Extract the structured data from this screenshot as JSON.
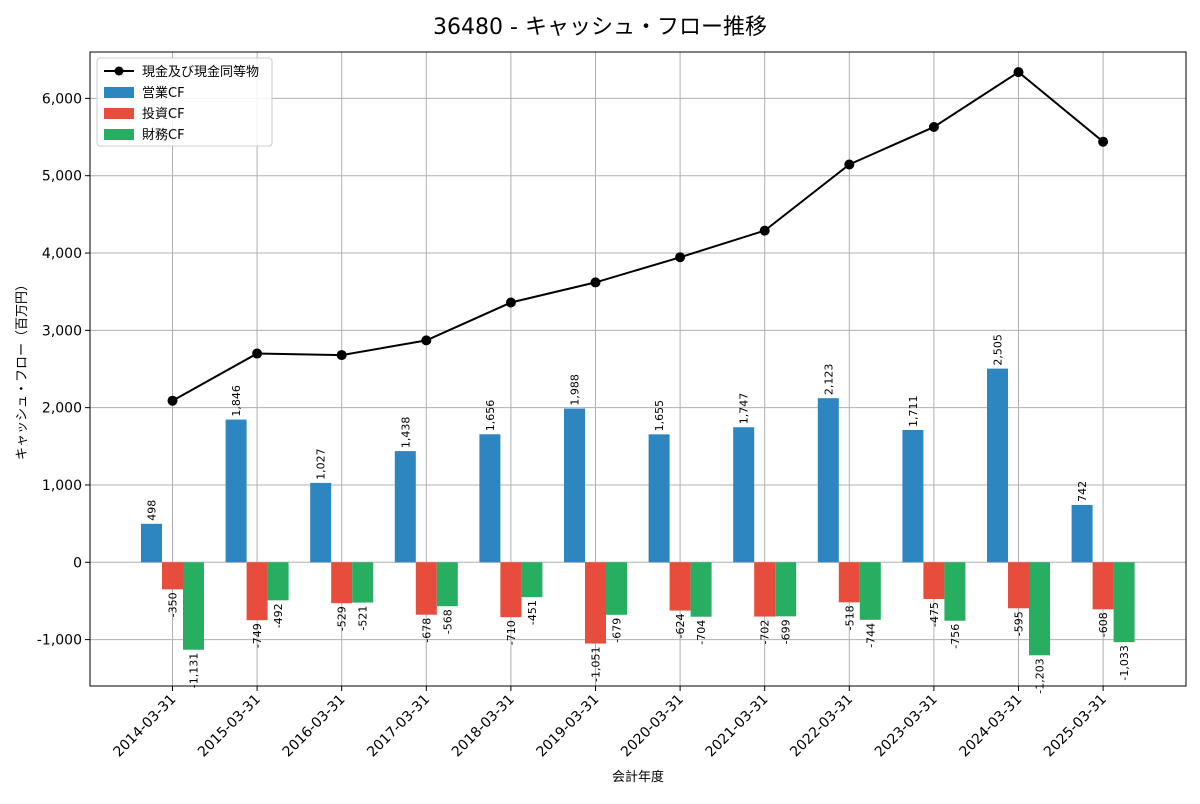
{
  "chart_data": {
    "type": "bar",
    "title": "36480 - キャッシュ・フロー推移",
    "xlabel": "会計年度",
    "ylabel": "キャッシュ・フロー（百万円）",
    "ylim": [
      -1600,
      6600
    ],
    "yticks": [
      -1000,
      0,
      1000,
      2000,
      3000,
      4000,
      5000,
      6000
    ],
    "ytick_labels": [
      "-1,000",
      "0",
      "1,000",
      "2,000",
      "3,000",
      "4,000",
      "5,000",
      "6,000"
    ],
    "grid": true,
    "legend_position": "top-left",
    "categories": [
      "2014-03-31",
      "2015-03-31",
      "2016-03-31",
      "2017-03-31",
      "2018-03-31",
      "2019-03-31",
      "2020-03-31",
      "2021-03-31",
      "2022-03-31",
      "2023-03-31",
      "2024-03-31",
      "2025-03-31"
    ],
    "series": [
      {
        "name": "営業CF",
        "kind": "bar",
        "color": "#2e86c1",
        "values": [
          498,
          1846,
          1027,
          1438,
          1656,
          1988,
          1655,
          1747,
          2123,
          1711,
          2505,
          742
        ],
        "labels": [
          "498",
          "1,846",
          "1,027",
          "1,438",
          "1,656",
          "1,988",
          "1,655",
          "1,747",
          "2,123",
          "1,711",
          "2,505",
          "742"
        ]
      },
      {
        "name": "投資CF",
        "kind": "bar",
        "color": "#e74c3c",
        "values": [
          -350,
          -749,
          -529,
          -678,
          -710,
          -1051,
          -624,
          -702,
          -518,
          -475,
          -595,
          -608
        ],
        "labels": [
          "-350",
          "-749",
          "-529",
          "-678",
          "-710",
          "-1,051",
          "-624",
          "-702",
          "-518",
          "-475",
          "-595",
          "-608"
        ]
      },
      {
        "name": "財務CF",
        "kind": "bar",
        "color": "#27ae60",
        "values": [
          -1131,
          -492,
          -521,
          -568,
          -451,
          -679,
          -704,
          -699,
          -744,
          -756,
          -1203,
          -1033
        ],
        "labels": [
          "-1,131",
          "-492",
          "-521",
          "-568",
          "-451",
          "-679",
          "-704",
          "-699",
          "-744",
          "-756",
          "-1,203",
          "-1,033"
        ]
      },
      {
        "name": "現金及び現金同等物",
        "kind": "line",
        "color": "#000000",
        "values": [
          2090,
          2700,
          2680,
          2870,
          3360,
          3620,
          3945,
          4290,
          5145,
          5630,
          6340,
          5440
        ]
      }
    ]
  }
}
